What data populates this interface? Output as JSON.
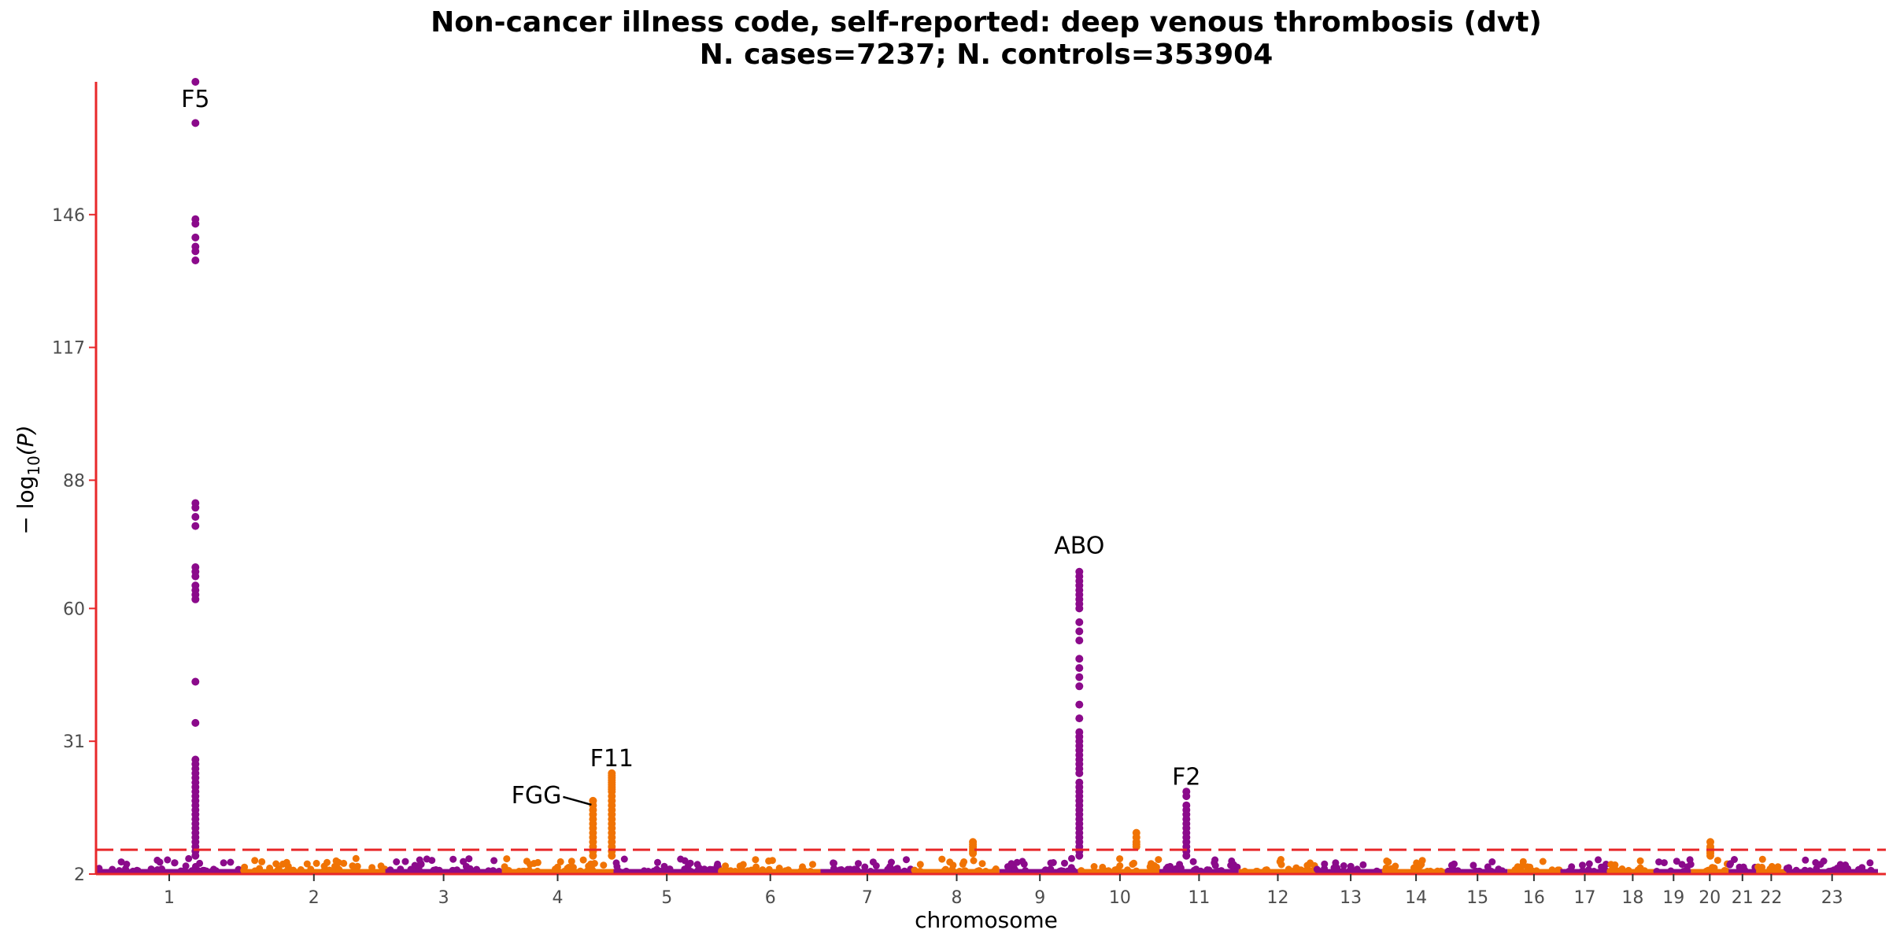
{
  "chart_data": {
    "type": "scatter",
    "subtype": "manhattan",
    "title": "Non-cancer illness code, self-reported: deep venous thrombosis (dvt)",
    "subtitle": "N. cases=7237; N. controls=353904",
    "xlabel": "chromosome",
    "ylabel_main": "− log",
    "ylabel_sub": "10",
    "ylabel_var": "(P)",
    "ylim": [
      2,
      175
    ],
    "y_ticks": [
      2,
      31,
      60,
      88,
      117,
      146
    ],
    "grid": false,
    "significance_line": 7.3,
    "colors": {
      "odd": "#8b0a8b",
      "even": "#f07304",
      "axis": "#e8282a",
      "threshold": "#e8282a"
    },
    "chromosomes": [
      {
        "label": "1",
        "length": 249
      },
      {
        "label": "2",
        "length": 243
      },
      {
        "label": "3",
        "length": 198
      },
      {
        "label": "4",
        "length": 190
      },
      {
        "label": "5",
        "length": 181
      },
      {
        "label": "6",
        "length": 171
      },
      {
        "label": "7",
        "length": 159
      },
      {
        "label": "8",
        "length": 145
      },
      {
        "label": "9",
        "length": 138
      },
      {
        "label": "10",
        "length": 134
      },
      {
        "label": "11",
        "length": 135
      },
      {
        "label": "12",
        "length": 133
      },
      {
        "label": "13",
        "length": 115
      },
      {
        "label": "14",
        "length": 107
      },
      {
        "label": "15",
        "length": 102
      },
      {
        "label": "16",
        "length": 90
      },
      {
        "label": "17",
        "length": 83
      },
      {
        "label": "18",
        "length": 80
      },
      {
        "label": "19",
        "length": 59
      },
      {
        "label": "20",
        "length": 64
      },
      {
        "label": "21",
        "length": 47
      },
      {
        "label": "22",
        "length": 51
      },
      {
        "label": "23",
        "length": 156
      }
    ],
    "peaks": [
      {
        "chr": 1,
        "pos": 169,
        "values": [
          175,
          166,
          145,
          144,
          141,
          139,
          138,
          136,
          83,
          82,
          80,
          78,
          69,
          68,
          67,
          65,
          64,
          63,
          62,
          44,
          35,
          27,
          26,
          25,
          24,
          23,
          22,
          21,
          20,
          19,
          18,
          17,
          16,
          15,
          14,
          13,
          12,
          11,
          10,
          9,
          8,
          7,
          6
        ]
      },
      {
        "chr": 4,
        "pos": 155,
        "values": [
          18,
          17,
          16,
          15,
          14,
          13,
          12,
          11,
          10,
          9,
          8,
          7,
          6
        ]
      },
      {
        "chr": 4,
        "pos": 187,
        "values": [
          24,
          23.5,
          23,
          22.5,
          22,
          21.5,
          21,
          20.5,
          20,
          19,
          18,
          17,
          16,
          15,
          14,
          13,
          12,
          11,
          10,
          9,
          8,
          7,
          6
        ]
      },
      {
        "chr": 8,
        "pos": 100,
        "values": [
          9,
          8.5,
          8,
          7.5,
          7,
          6.5
        ]
      },
      {
        "chr": 9,
        "pos": 136,
        "values": [
          68,
          67,
          66,
          65,
          64,
          63,
          62,
          61,
          60,
          57,
          55,
          53,
          49,
          47,
          45,
          43,
          39,
          36,
          33,
          32,
          31,
          30,
          29,
          28,
          27,
          26,
          25,
          24,
          22,
          21,
          20,
          19,
          18,
          17,
          16,
          15,
          14,
          13,
          12,
          11,
          10,
          9,
          8,
          7,
          6
        ]
      },
      {
        "chr": 10,
        "pos": 95,
        "values": [
          11,
          10,
          9,
          8.5,
          8
        ]
      },
      {
        "chr": 11,
        "pos": 46,
        "values": [
          20,
          19,
          17,
          16,
          15,
          14,
          13,
          12,
          11,
          10,
          9,
          8,
          7,
          6
        ]
      },
      {
        "chr": 20,
        "pos": 33,
        "values": [
          9,
          8,
          7.5,
          7,
          6.5,
          6
        ]
      }
    ],
    "annotations": [
      {
        "text": "F5",
        "chr": 1,
        "pos": 169,
        "y": 169.5
      },
      {
        "text": "F11",
        "chr": 4,
        "pos": 187,
        "y": 25.5
      },
      {
        "text": "FGG",
        "chr": 4,
        "pos": 155,
        "y": 19.2,
        "side": "left",
        "leader": true
      },
      {
        "text": "ABO",
        "chr": 9,
        "pos": 136,
        "y": 72
      },
      {
        "text": "F2",
        "chr": 11,
        "pos": 46,
        "y": 21.5
      }
    ]
  }
}
